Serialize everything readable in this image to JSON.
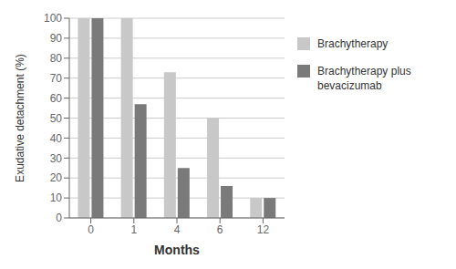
{
  "chart_data": {
    "type": "bar",
    "categories": [
      "0",
      "1",
      "4",
      "6",
      "12"
    ],
    "series": [
      {
        "name": "Brachytherapy",
        "color": "#c8c8c8",
        "values": [
          100,
          100,
          73,
          50,
          10
        ]
      },
      {
        "name": "Brachytherapy plus\nbevacizumab",
        "color": "#7a7a7a",
        "values": [
          100,
          57,
          25,
          16,
          10
        ]
      }
    ],
    "xlabel": "Months",
    "ylabel": "Exudative detachment (%)",
    "ylim": [
      0,
      100
    ],
    "yticks": [
      0,
      10,
      20,
      30,
      40,
      50,
      60,
      70,
      80,
      90,
      100
    ],
    "grid": true,
    "legend": "upper right"
  }
}
